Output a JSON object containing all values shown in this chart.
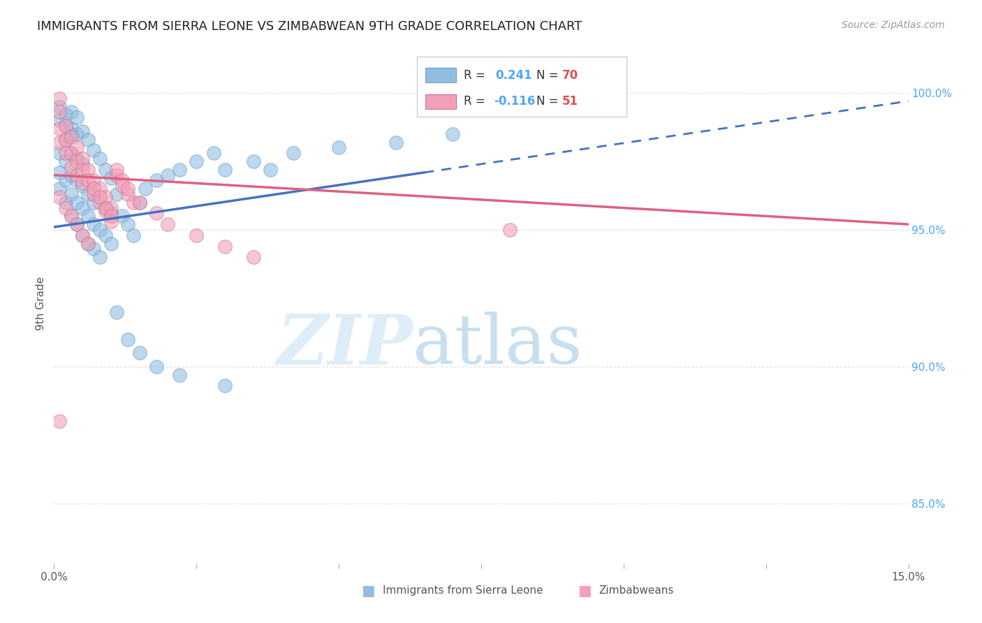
{
  "title": "IMMIGRANTS FROM SIERRA LEONE VS ZIMBABWEAN 9TH GRADE CORRELATION CHART",
  "source": "Source: ZipAtlas.com",
  "ylabel": "9th Grade",
  "ytick_labels": [
    "85.0%",
    "90.0%",
    "95.0%",
    "100.0%"
  ],
  "ytick_values": [
    0.85,
    0.9,
    0.95,
    1.0
  ],
  "xmin": 0.0,
  "xmax": 0.15,
  "ymin": 0.828,
  "ymax": 1.018,
  "blue_color": "#92bde0",
  "pink_color": "#f2a0b8",
  "trendline_blue": "#4472c4",
  "trendline_pink": "#e06080",
  "grid_color": "#d8d8d8",
  "blue_r": "0.241",
  "blue_n": "70",
  "pink_r": "-0.116",
  "pink_n": "51",
  "blue_scatter_x": [
    0.001,
    0.001,
    0.001,
    0.002,
    0.002,
    0.002,
    0.002,
    0.003,
    0.003,
    0.003,
    0.003,
    0.003,
    0.004,
    0.004,
    0.004,
    0.004,
    0.005,
    0.005,
    0.005,
    0.005,
    0.006,
    0.006,
    0.006,
    0.007,
    0.007,
    0.007,
    0.008,
    0.008,
    0.009,
    0.009,
    0.01,
    0.01,
    0.011,
    0.012,
    0.013,
    0.014,
    0.015,
    0.016,
    0.018,
    0.02,
    0.022,
    0.025,
    0.028,
    0.03,
    0.035,
    0.038,
    0.042,
    0.05,
    0.06,
    0.07,
    0.001,
    0.001,
    0.002,
    0.002,
    0.003,
    0.003,
    0.004,
    0.004,
    0.005,
    0.006,
    0.007,
    0.008,
    0.009,
    0.01,
    0.011,
    0.013,
    0.015,
    0.018,
    0.022,
    0.03
  ],
  "blue_scatter_y": [
    0.971,
    0.965,
    0.978,
    0.96,
    0.968,
    0.975,
    0.983,
    0.955,
    0.963,
    0.97,
    0.978,
    0.985,
    0.952,
    0.96,
    0.968,
    0.976,
    0.948,
    0.958,
    0.966,
    0.974,
    0.945,
    0.955,
    0.963,
    0.943,
    0.952,
    0.96,
    0.94,
    0.95,
    0.948,
    0.958,
    0.945,
    0.956,
    0.963,
    0.955,
    0.952,
    0.948,
    0.96,
    0.965,
    0.968,
    0.97,
    0.972,
    0.975,
    0.978,
    0.972,
    0.975,
    0.972,
    0.978,
    0.98,
    0.982,
    0.985,
    0.99,
    0.995,
    0.988,
    0.992,
    0.987,
    0.993,
    0.985,
    0.991,
    0.986,
    0.983,
    0.979,
    0.976,
    0.972,
    0.969,
    0.92,
    0.91,
    0.905,
    0.9,
    0.897,
    0.893
  ],
  "pink_scatter_x": [
    0.001,
    0.001,
    0.001,
    0.001,
    0.002,
    0.002,
    0.002,
    0.003,
    0.003,
    0.003,
    0.004,
    0.004,
    0.004,
    0.005,
    0.005,
    0.005,
    0.006,
    0.006,
    0.007,
    0.007,
    0.008,
    0.008,
    0.009,
    0.009,
    0.01,
    0.01,
    0.011,
    0.012,
    0.013,
    0.014,
    0.001,
    0.002,
    0.003,
    0.004,
    0.005,
    0.006,
    0.007,
    0.008,
    0.009,
    0.01,
    0.011,
    0.012,
    0.013,
    0.015,
    0.018,
    0.02,
    0.025,
    0.03,
    0.035,
    0.08,
    0.001
  ],
  "pink_scatter_y": [
    0.998,
    0.993,
    0.987,
    0.982,
    0.988,
    0.983,
    0.978,
    0.984,
    0.978,
    0.973,
    0.98,
    0.975,
    0.97,
    0.976,
    0.972,
    0.967,
    0.972,
    0.968,
    0.968,
    0.963,
    0.965,
    0.96,
    0.962,
    0.957,
    0.958,
    0.953,
    0.97,
    0.966,
    0.963,
    0.96,
    0.962,
    0.958,
    0.955,
    0.952,
    0.948,
    0.945,
    0.965,
    0.962,
    0.958,
    0.955,
    0.972,
    0.968,
    0.965,
    0.96,
    0.956,
    0.952,
    0.948,
    0.944,
    0.94,
    0.95,
    0.88
  ],
  "blue_trend_y0": 0.951,
  "blue_trend_y1": 0.997,
  "blue_trend_x_solid_end": 0.065,
  "pink_trend_y0": 0.97,
  "pink_trend_y1": 0.952
}
